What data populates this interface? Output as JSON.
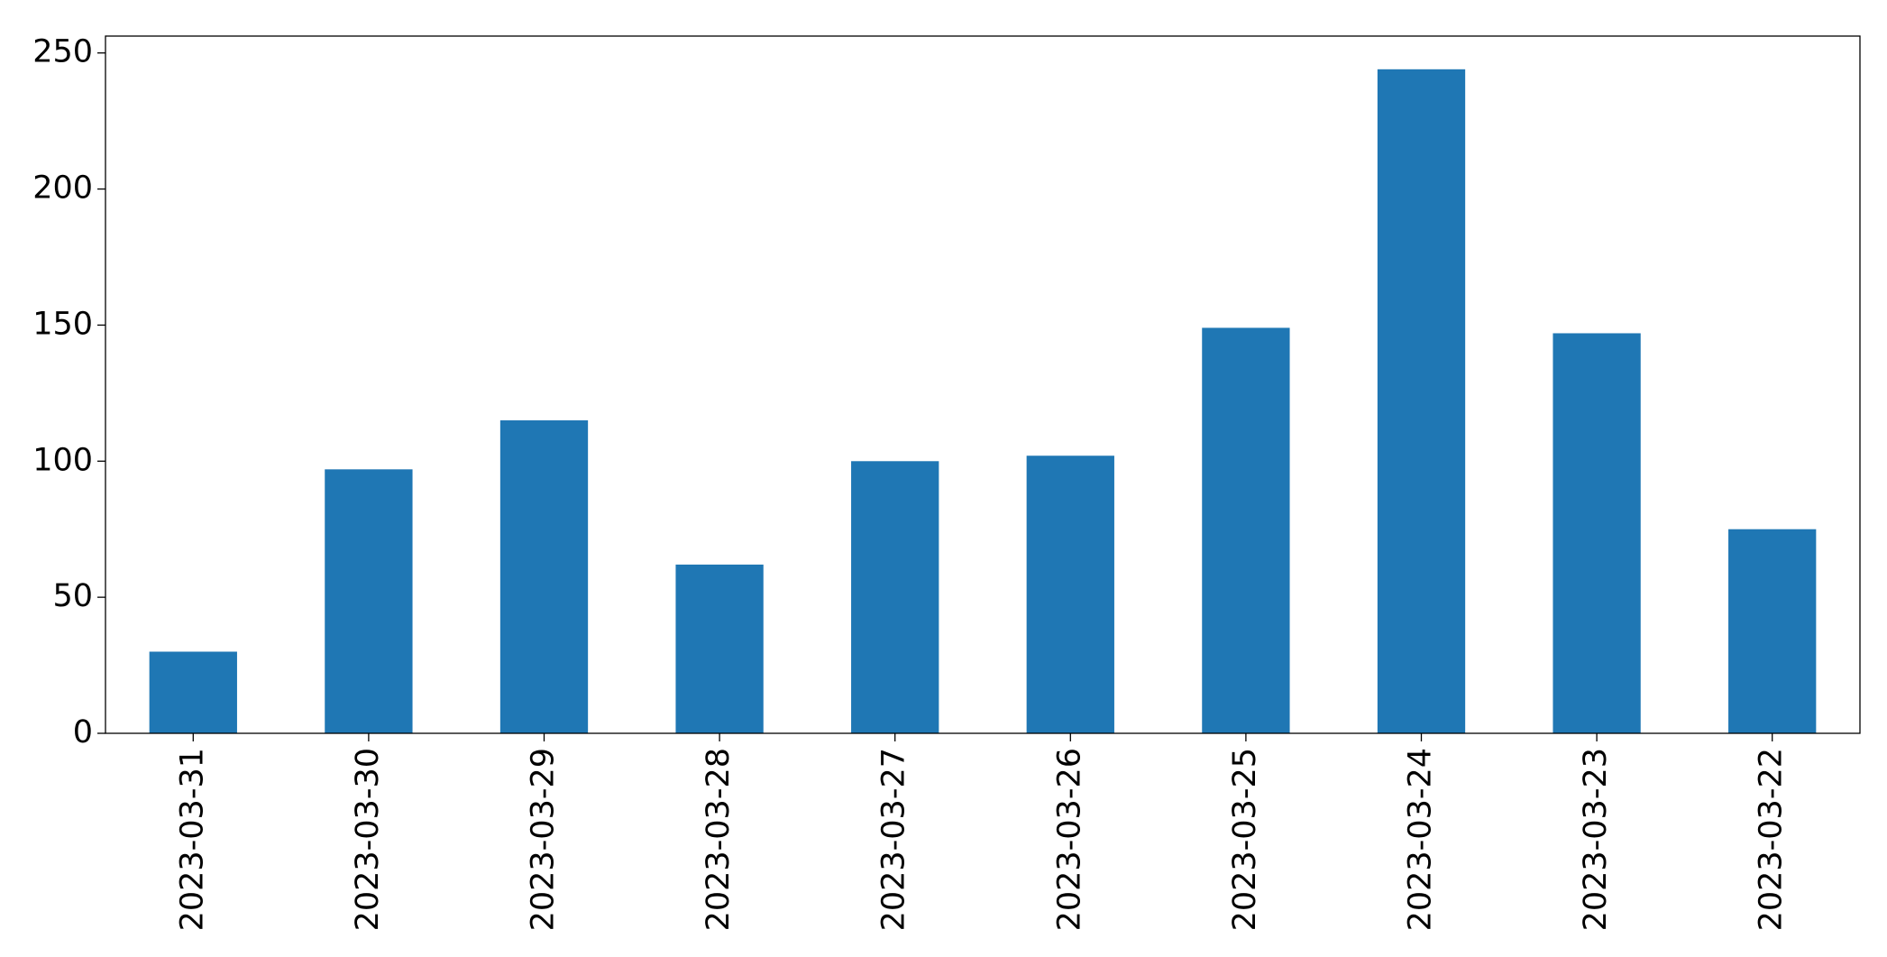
{
  "chart_data": {
    "type": "bar",
    "categories": [
      "2023-03-31",
      "2023-03-30",
      "2023-03-29",
      "2023-03-28",
      "2023-03-27",
      "2023-03-26",
      "2023-03-25",
      "2023-03-24",
      "2023-03-23",
      "2023-03-22"
    ],
    "values": [
      30,
      97,
      115,
      62,
      100,
      102,
      149,
      244,
      147,
      75
    ],
    "color": "#1f77b4",
    "ylim": [
      0,
      256.2
    ],
    "yticks": [
      0,
      50,
      100,
      150,
      200,
      250
    ],
    "grid": false
  }
}
